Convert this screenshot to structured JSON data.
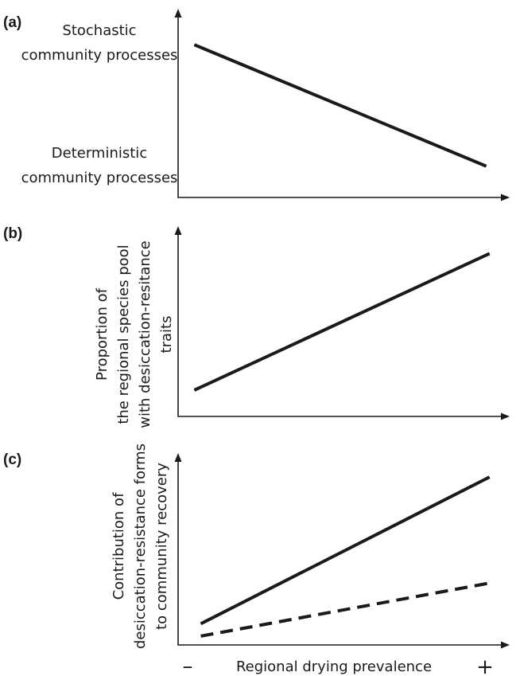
{
  "panels": [
    {
      "label": "(a)",
      "y_top_text": [
        "Stochastic",
        "community processes"
      ],
      "y_bottom_text": [
        "Deterministic",
        "community processes"
      ],
      "ylabel_lines": []
    },
    {
      "label": "(b)",
      "ylabel_lines": [
        "Proportion of",
        "the regional species pool",
        "with desiccation-resitance",
        "traits"
      ]
    },
    {
      "label": "(c)",
      "ylabel_lines": [
        "Contribution of",
        "desiccation-resistance forms",
        "to community recovery"
      ]
    }
  ],
  "xlabel": "Regional drying prevalence",
  "x_min_symbol": "–",
  "x_max_symbol": "+",
  "chart_data": [
    {
      "type": "line",
      "title": "(a)",
      "x": [
        0.05,
        0.95
      ],
      "series": [
        {
          "style": "solid",
          "values": [
            0.88,
            0.18
          ]
        }
      ],
      "xlim": [
        0,
        1
      ],
      "ylim": [
        0,
        1
      ],
      "ytick_labels": [
        "Deterministic community processes",
        "Stochastic community processes"
      ]
    },
    {
      "type": "line",
      "title": "(b)",
      "x": [
        0.05,
        0.96
      ],
      "series": [
        {
          "style": "solid",
          "values": [
            0.15,
            0.93
          ]
        }
      ],
      "xlim": [
        0,
        1
      ],
      "ylim": [
        0,
        1
      ]
    },
    {
      "type": "line",
      "title": "(c)",
      "x": [
        0.07,
        0.96
      ],
      "series": [
        {
          "style": "solid",
          "values": [
            0.12,
            0.95
          ]
        },
        {
          "style": "dashed",
          "values": [
            0.05,
            0.35
          ]
        }
      ],
      "xlim": [
        0,
        1
      ],
      "ylim": [
        0,
        1
      ]
    }
  ]
}
